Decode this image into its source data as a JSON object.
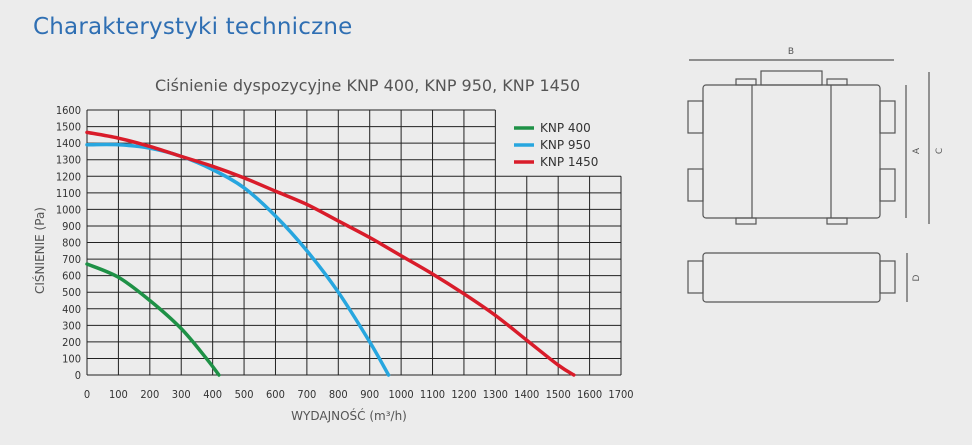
{
  "page": {
    "title": "Charakterystyki techniczne"
  },
  "chart_data": {
    "type": "line",
    "title": "Ciśnienie dyspozycyjne KNP 400, KNP 950, KNP 1450",
    "xlabel": "WYDAJNOŚĆ (m³/h)",
    "ylabel": "CIŚNIENIE (Pa)",
    "xlim": [
      0,
      1700
    ],
    "ylim": [
      0,
      1600
    ],
    "xticks": [
      0,
      100,
      200,
      300,
      400,
      500,
      600,
      700,
      800,
      900,
      1000,
      1100,
      1200,
      1300,
      1400,
      1500,
      1600,
      1700
    ],
    "yticks": [
      0,
      100,
      200,
      300,
      400,
      500,
      600,
      700,
      800,
      900,
      1000,
      1100,
      1200,
      1300,
      1400,
      1500,
      1600
    ],
    "grid": true,
    "legend": "top-right",
    "series": [
      {
        "name": "KNP 400",
        "color": "#1e9146",
        "x": [
          0,
          100,
          200,
          300,
          380,
          420
        ],
        "y": [
          670,
          590,
          450,
          280,
          100,
          0
        ]
      },
      {
        "name": "KNP 950",
        "color": "#27a6df",
        "x": [
          0,
          100,
          200,
          300,
          400,
          500,
          600,
          700,
          800,
          900,
          960
        ],
        "y": [
          1390,
          1390,
          1370,
          1320,
          1240,
          1130,
          960,
          750,
          500,
          200,
          0
        ]
      },
      {
        "name": "KNP 1450",
        "color": "#d91c2a",
        "x": [
          0,
          100,
          200,
          300,
          400,
          500,
          600,
          700,
          800,
          900,
          1000,
          1100,
          1200,
          1300,
          1400,
          1500,
          1550
        ],
        "y": [
          1465,
          1430,
          1380,
          1320,
          1260,
          1190,
          1110,
          1030,
          930,
          830,
          720,
          610,
          490,
          360,
          210,
          60,
          0
        ]
      }
    ]
  },
  "diagram": {
    "labels": {
      "b": "B",
      "a": "A",
      "c": "C",
      "d": "D"
    }
  }
}
